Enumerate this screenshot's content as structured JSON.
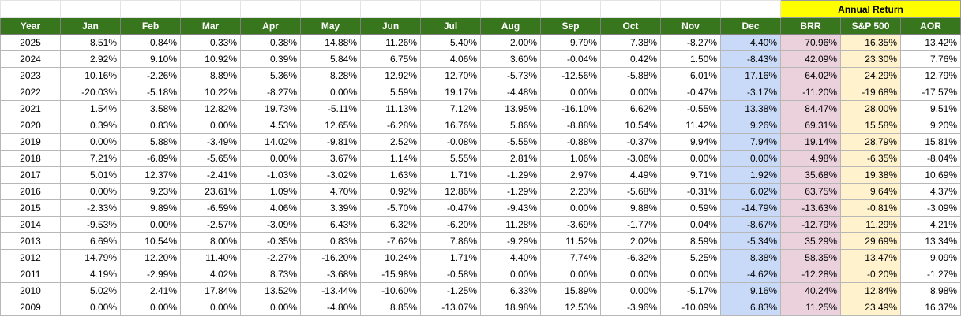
{
  "annual_return_label": "Annual Return",
  "header": [
    "Year",
    "Jan",
    "Feb",
    "Mar",
    "Apr",
    "May",
    "Jun",
    "Jul",
    "Aug",
    "Sep",
    "Oct",
    "Nov",
    "Dec",
    "BRR",
    "S&P 500",
    "AOR"
  ],
  "rows": [
    [
      "2025",
      "8.51%",
      "0.84%",
      "0.33%",
      "0.38%",
      "14.88%",
      "11.26%",
      "5.40%",
      "2.00%",
      "9.79%",
      "7.38%",
      "-8.27%",
      "4.40%",
      "70.96%",
      "16.35%",
      "13.42%"
    ],
    [
      "2024",
      "2.92%",
      "9.10%",
      "10.92%",
      "0.39%",
      "5.84%",
      "6.75%",
      "4.06%",
      "3.60%",
      "-0.04%",
      "0.42%",
      "1.50%",
      "-8.43%",
      "42.09%",
      "23.30%",
      "7.76%"
    ],
    [
      "2023",
      "10.16%",
      "-2.26%",
      "8.89%",
      "5.36%",
      "8.28%",
      "12.92%",
      "12.70%",
      "-5.73%",
      "-12.56%",
      "-5.88%",
      "6.01%",
      "17.16%",
      "64.02%",
      "24.29%",
      "12.79%"
    ],
    [
      "2022",
      "-20.03%",
      "-5.18%",
      "10.22%",
      "-8.27%",
      "0.00%",
      "5.59%",
      "19.17%",
      "-4.48%",
      "0.00%",
      "0.00%",
      "-0.47%",
      "-3.17%",
      "-11.20%",
      "-19.68%",
      "-17.57%"
    ],
    [
      "2021",
      "1.54%",
      "3.58%",
      "12.82%",
      "19.73%",
      "-5.11%",
      "11.13%",
      "7.12%",
      "13.95%",
      "-16.10%",
      "6.62%",
      "-0.55%",
      "13.38%",
      "84.47%",
      "28.00%",
      "9.51%"
    ],
    [
      "2020",
      "0.39%",
      "0.83%",
      "0.00%",
      "4.53%",
      "12.65%",
      "-6.28%",
      "16.76%",
      "5.86%",
      "-8.88%",
      "10.54%",
      "11.42%",
      "9.26%",
      "69.31%",
      "15.58%",
      "9.20%"
    ],
    [
      "2019",
      "0.00%",
      "5.88%",
      "-3.49%",
      "14.02%",
      "-9.81%",
      "2.52%",
      "-0.08%",
      "-5.55%",
      "-0.88%",
      "-0.37%",
      "9.94%",
      "7.94%",
      "19.14%",
      "28.79%",
      "15.81%"
    ],
    [
      "2018",
      "7.21%",
      "-6.89%",
      "-5.65%",
      "0.00%",
      "3.67%",
      "1.14%",
      "5.55%",
      "2.81%",
      "1.06%",
      "-3.06%",
      "0.00%",
      "0.00%",
      "4.98%",
      "-6.35%",
      "-8.04%"
    ],
    [
      "2017",
      "5.01%",
      "12.37%",
      "-2.41%",
      "-1.03%",
      "-3.02%",
      "1.63%",
      "1.71%",
      "-1.29%",
      "2.97%",
      "4.49%",
      "9.71%",
      "1.92%",
      "35.68%",
      "19.38%",
      "10.69%"
    ],
    [
      "2016",
      "0.00%",
      "9.23%",
      "23.61%",
      "1.09%",
      "4.70%",
      "0.92%",
      "12.86%",
      "-1.29%",
      "2.23%",
      "-5.68%",
      "-0.31%",
      "6.02%",
      "63.75%",
      "9.64%",
      "4.37%"
    ],
    [
      "2015",
      "-2.33%",
      "9.89%",
      "-6.59%",
      "4.06%",
      "3.39%",
      "-5.70%",
      "-0.47%",
      "-9.43%",
      "0.00%",
      "9.88%",
      "0.59%",
      "-14.79%",
      "-13.63%",
      "-0.81%",
      "-3.09%"
    ],
    [
      "2014",
      "-9.53%",
      "0.00%",
      "-2.57%",
      "-3.09%",
      "6.43%",
      "6.32%",
      "-6.20%",
      "11.28%",
      "-3.69%",
      "-1.77%",
      "0.04%",
      "-8.67%",
      "-12.79%",
      "11.29%",
      "4.21%"
    ],
    [
      "2013",
      "6.69%",
      "10.54%",
      "8.00%",
      "-0.35%",
      "0.83%",
      "-7.62%",
      "7.86%",
      "-9.29%",
      "11.52%",
      "2.02%",
      "8.59%",
      "-5.34%",
      "35.29%",
      "29.69%",
      "13.34%"
    ],
    [
      "2012",
      "14.79%",
      "12.20%",
      "11.40%",
      "-2.27%",
      "-16.20%",
      "10.24%",
      "1.71%",
      "4.40%",
      "7.74%",
      "-6.32%",
      "5.25%",
      "8.38%",
      "58.35%",
      "13.47%",
      "9.09%"
    ],
    [
      "2011",
      "4.19%",
      "-2.99%",
      "4.02%",
      "8.73%",
      "-3.68%",
      "-15.98%",
      "-0.58%",
      "0.00%",
      "0.00%",
      "0.00%",
      "0.00%",
      "-4.62%",
      "-12.28%",
      "-0.20%",
      "-1.27%"
    ],
    [
      "2010",
      "5.02%",
      "2.41%",
      "17.84%",
      "13.52%",
      "-13.44%",
      "-10.60%",
      "-1.25%",
      "6.33%",
      "15.89%",
      "0.00%",
      "-5.17%",
      "9.16%",
      "40.24%",
      "12.84%",
      "8.98%"
    ],
    [
      "2009",
      "0.00%",
      "0.00%",
      "0.00%",
      "0.00%",
      "-4.80%",
      "8.85%",
      "-13.07%",
      "18.98%",
      "12.53%",
      "-3.96%",
      "-10.09%",
      "6.83%",
      "11.25%",
      "23.49%",
      "16.37%"
    ]
  ]
}
